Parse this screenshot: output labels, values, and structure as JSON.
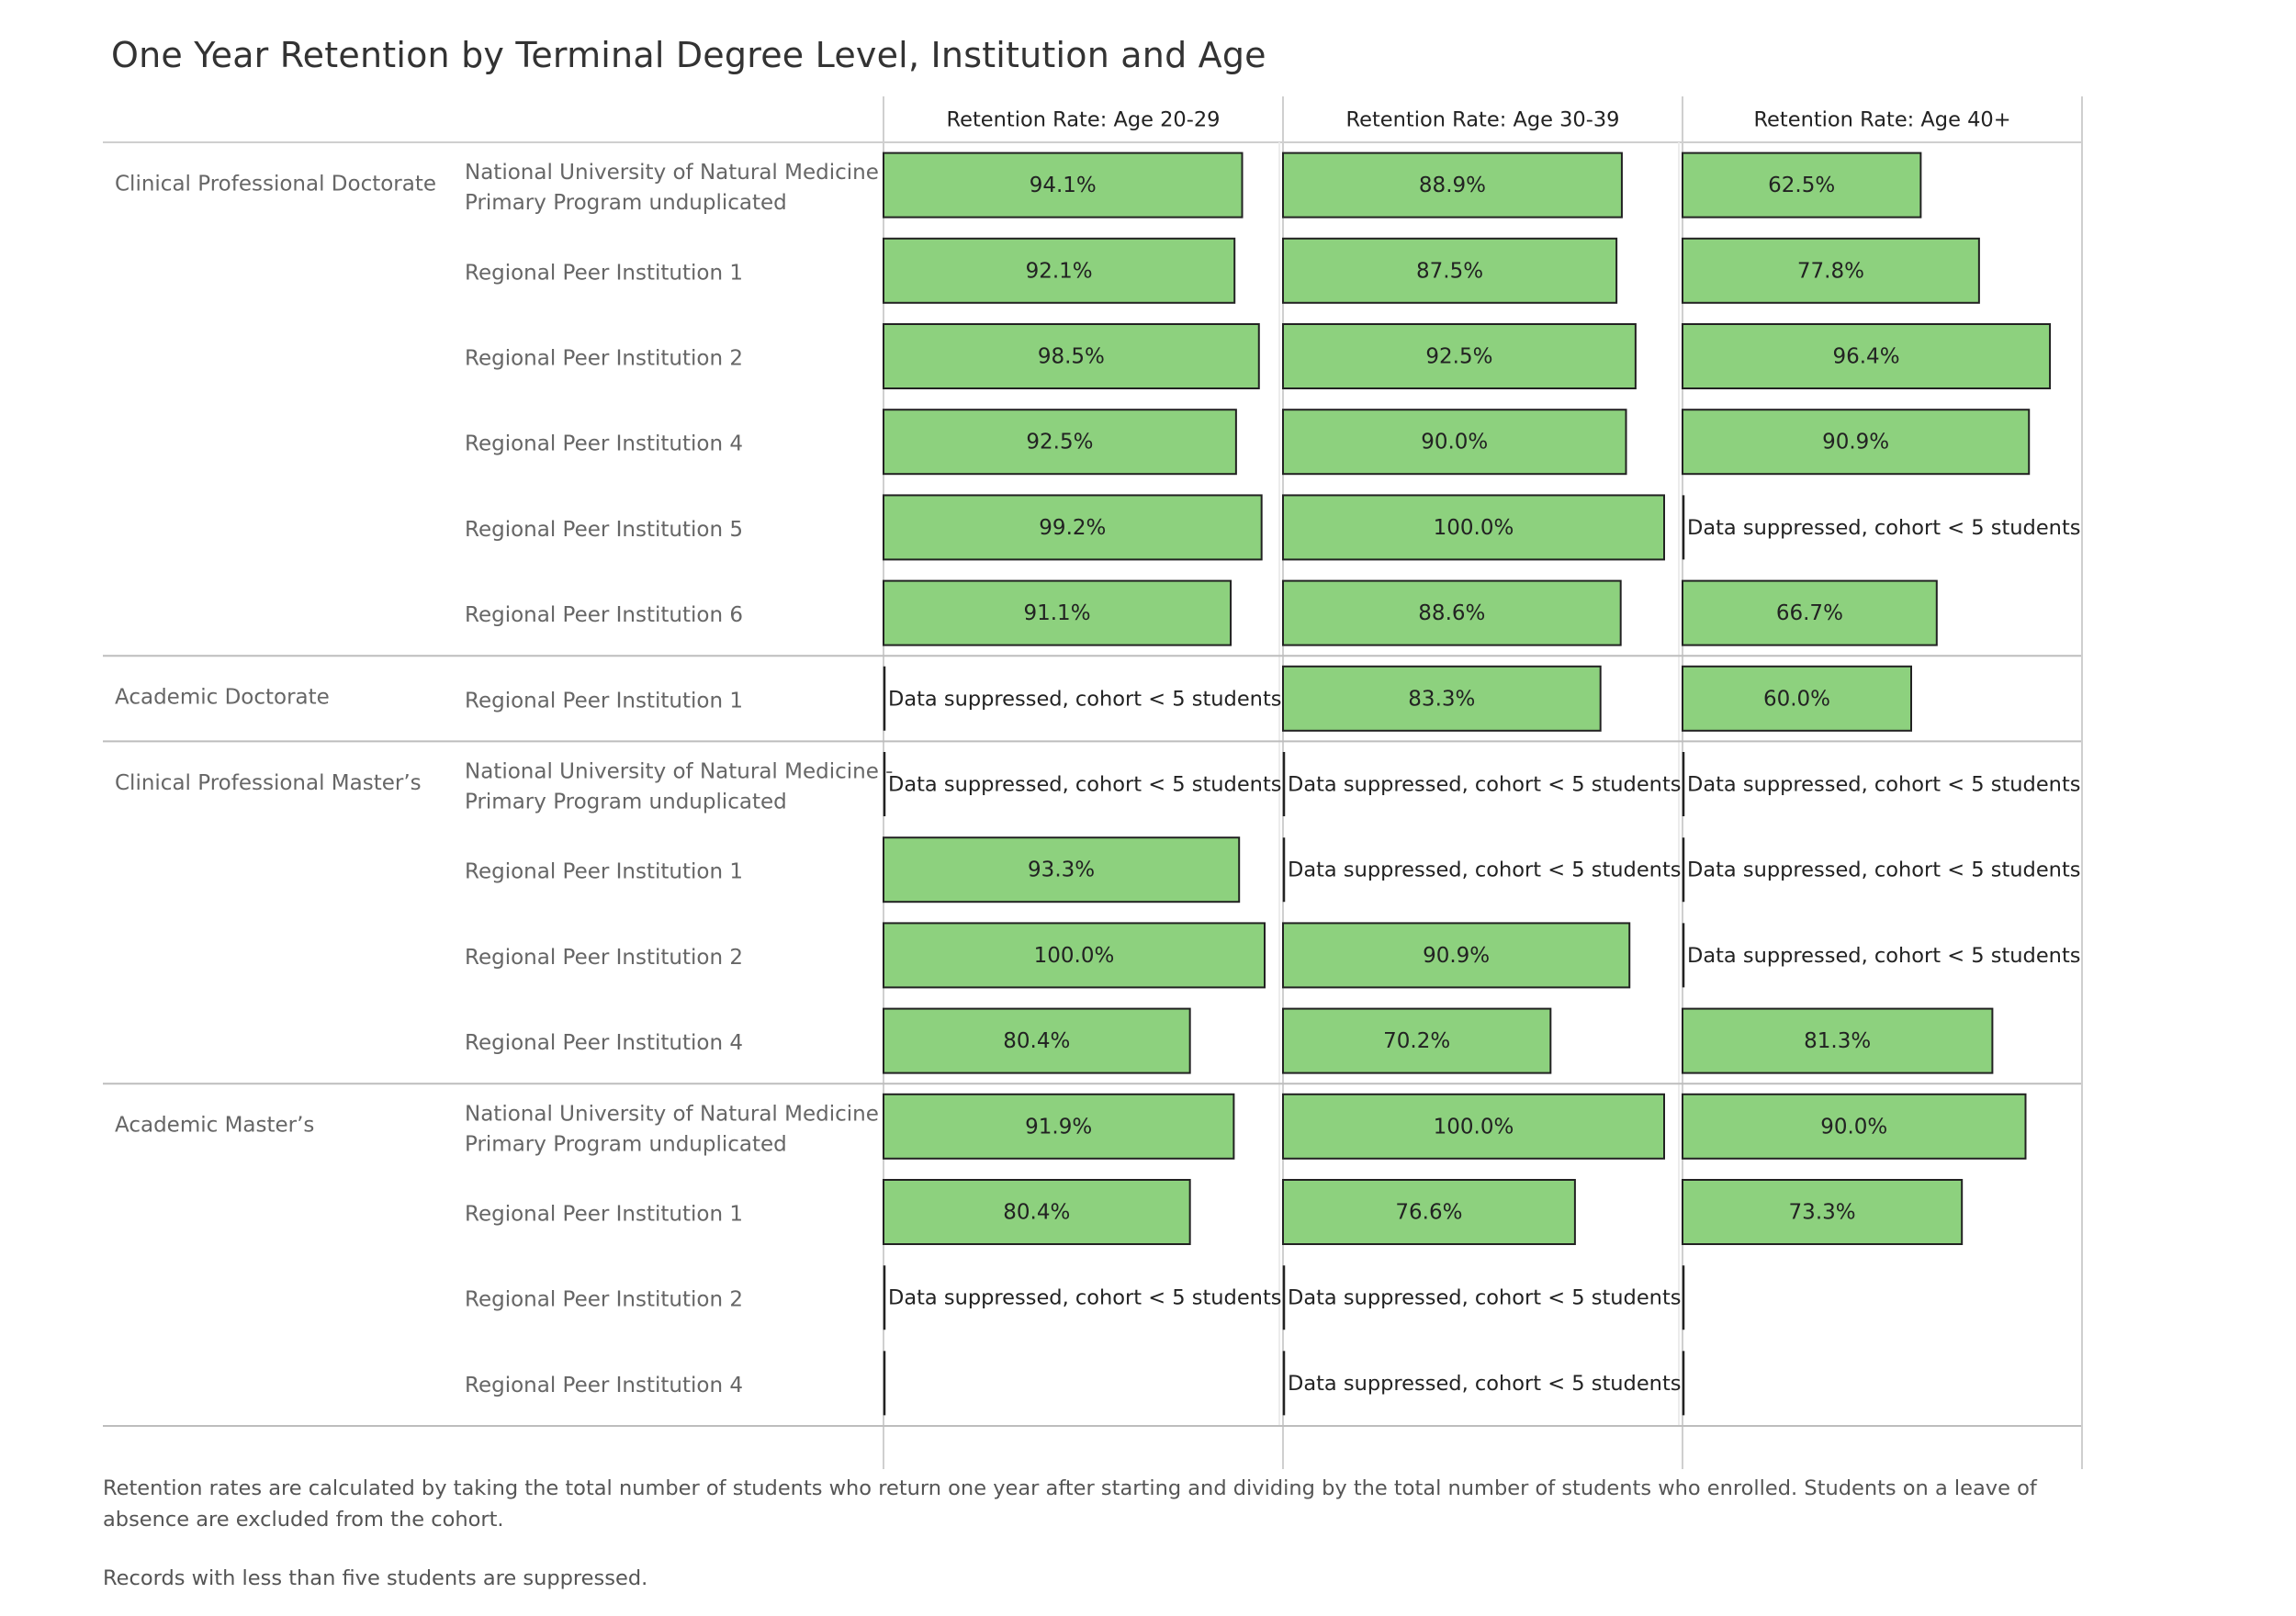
{
  "title": "One Year Retention by Terminal Degree Level, Institution and Age",
  "colors": {
    "bar_fill": "#8dd17e",
    "bar_stroke": "#222222",
    "grid": "#cfcfcf",
    "divider": "#bdbdbd",
    "row_label": "#666666",
    "text": "#333333"
  },
  "suppressed_label": "Data suppressed, cohort < 5 students",
  "notes": [
    "Retention rates are calculated by taking the total number of students who return one year after starting and dividing by the total number of students who enrolled. Students on a leave of absence are excluded from the cohort.",
    "Records with less than five students are suppressed."
  ],
  "chart_data": {
    "type": "bar",
    "orientation": "horizontal",
    "title": "One Year Retention by Terminal Degree Level, Institution and Age",
    "columns": [
      "Retention Rate: Age 20-29",
      "Retention Rate: Age 30-39",
      "Retention Rate: Age 40+"
    ],
    "groups": [
      {
        "name": "Clinical Professional Doctorate",
        "rows": [
          {
            "institution": [
              "National University of Natural Medicine -",
              "Primary Program unduplicated"
            ],
            "values": [
              94.1,
              88.9,
              62.5
            ],
            "labels": [
              "94.1%",
              "88.9%",
              "62.5%"
            ]
          },
          {
            "institution": [
              "Regional Peer Institution 1"
            ],
            "values": [
              92.1,
              87.5,
              77.8
            ],
            "labels": [
              "92.1%",
              "87.5%",
              "77.8%"
            ]
          },
          {
            "institution": [
              "Regional Peer Institution 2"
            ],
            "values": [
              98.5,
              92.5,
              96.4
            ],
            "labels": [
              "98.5%",
              "92.5%",
              "96.4%"
            ]
          },
          {
            "institution": [
              "Regional Peer Institution 4"
            ],
            "values": [
              92.5,
              90.0,
              90.9
            ],
            "labels": [
              "92.5%",
              "90.0%",
              "90.9%"
            ]
          },
          {
            "institution": [
              "Regional Peer Institution 5"
            ],
            "values": [
              99.2,
              100.0,
              "suppressed"
            ],
            "labels": [
              "99.2%",
              "100.0%",
              ""
            ]
          },
          {
            "institution": [
              "Regional Peer Institution 6"
            ],
            "values": [
              91.1,
              88.6,
              66.7
            ],
            "labels": [
              "91.1%",
              "88.6%",
              "66.7%"
            ]
          }
        ]
      },
      {
        "name": "Academic Doctorate",
        "rows": [
          {
            "institution": [
              "Regional Peer Institution 1"
            ],
            "values": [
              "suppressed",
              83.3,
              60.0
            ],
            "labels": [
              "",
              "83.3%",
              "60.0%"
            ]
          }
        ]
      },
      {
        "name": "Clinical Professional Master’s",
        "rows": [
          {
            "institution": [
              "National University of Natural Medicine -",
              "Primary Program unduplicated"
            ],
            "values": [
              "suppressed",
              "suppressed",
              "suppressed"
            ],
            "labels": [
              "",
              "",
              ""
            ]
          },
          {
            "institution": [
              "Regional Peer Institution 1"
            ],
            "values": [
              93.3,
              "suppressed",
              "suppressed"
            ],
            "labels": [
              "93.3%",
              "",
              ""
            ]
          },
          {
            "institution": [
              "Regional Peer Institution 2"
            ],
            "values": [
              100.0,
              90.9,
              "suppressed"
            ],
            "labels": [
              "100.0%",
              "90.9%",
              ""
            ]
          },
          {
            "institution": [
              "Regional Peer Institution 4"
            ],
            "values": [
              80.4,
              70.2,
              81.3
            ],
            "labels": [
              "80.4%",
              "70.2%",
              "81.3%"
            ]
          }
        ]
      },
      {
        "name": "Academic Master’s",
        "rows": [
          {
            "institution": [
              "National University of Natural Medicine -",
              "Primary Program unduplicated"
            ],
            "values": [
              91.9,
              100.0,
              90.0
            ],
            "labels": [
              "91.9%",
              "100.0%",
              "90.0%"
            ]
          },
          {
            "institution": [
              "Regional Peer Institution 1"
            ],
            "values": [
              80.4,
              76.6,
              73.3
            ],
            "labels": [
              "80.4%",
              "76.6%",
              "73.3%"
            ]
          },
          {
            "institution": [
              "Regional Peer Institution 2"
            ],
            "values": [
              "suppressed",
              "suppressed",
              null
            ],
            "labels": [
              "",
              "",
              ""
            ]
          },
          {
            "institution": [
              "Regional Peer Institution 4"
            ],
            "values": [
              null,
              "suppressed",
              null
            ],
            "labels": [
              "",
              "",
              ""
            ]
          }
        ]
      }
    ],
    "xlim": [
      0,
      100
    ]
  }
}
